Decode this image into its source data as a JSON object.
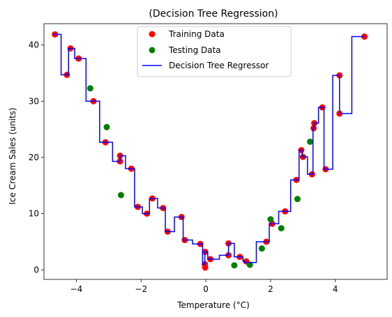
{
  "chart_data": {
    "type": "scatter",
    "title": "(Decision Tree Regression)",
    "xlabel": "Temperature (°C)",
    "ylabel": "Ice Cream Sales (units)",
    "xlim": [
      -5.0,
      5.6
    ],
    "ylim": [
      -1.7,
      43.8
    ],
    "xticks": [
      -4,
      -2,
      0,
      2,
      4
    ],
    "yticks": [
      0,
      10,
      20,
      30,
      40
    ],
    "grid": false,
    "legend_position": "top-center",
    "colors": {
      "training": "#ff0000",
      "testing": "#008000",
      "regressor": "#0000ff"
    },
    "series": [
      {
        "name": "Training Data",
        "kind": "scatter",
        "points": [
          [
            -4.66,
            41.9
          ],
          [
            -4.29,
            34.7
          ],
          [
            -4.18,
            39.4
          ],
          [
            -3.93,
            37.6
          ],
          [
            -3.47,
            30.0
          ],
          [
            -3.1,
            22.7
          ],
          [
            -2.65,
            20.3
          ],
          [
            -2.65,
            19.3
          ],
          [
            -2.3,
            18.0
          ],
          [
            -2.1,
            11.2
          ],
          [
            -1.82,
            10.0
          ],
          [
            -1.65,
            12.7
          ],
          [
            -1.32,
            11.0
          ],
          [
            -1.18,
            6.8
          ],
          [
            -0.75,
            9.4
          ],
          [
            -0.65,
            5.3
          ],
          [
            -0.17,
            4.6
          ],
          [
            -0.03,
            1.0
          ],
          [
            -0.02,
            3.2
          ],
          [
            -0.02,
            0.4
          ],
          [
            0.14,
            1.9
          ],
          [
            0.7,
            4.7
          ],
          [
            0.7,
            2.6
          ],
          [
            1.05,
            2.3
          ],
          [
            1.25,
            1.5
          ],
          [
            1.87,
            5.0
          ],
          [
            2.05,
            8.2
          ],
          [
            2.45,
            10.4
          ],
          [
            2.8,
            16.0
          ],
          [
            2.95,
            21.3
          ],
          [
            3.0,
            20.1
          ],
          [
            3.28,
            17.0
          ],
          [
            3.33,
            25.2
          ],
          [
            3.35,
            26.1
          ],
          [
            3.6,
            28.9
          ],
          [
            3.7,
            17.9
          ],
          [
            4.13,
            34.6
          ],
          [
            4.13,
            27.8
          ],
          [
            4.9,
            41.5
          ]
        ]
      },
      {
        "name": "Testing Data",
        "kind": "scatter",
        "points": [
          [
            -3.57,
            32.3
          ],
          [
            -3.06,
            25.4
          ],
          [
            -2.62,
            13.3
          ],
          [
            0.88,
            0.8
          ],
          [
            1.36,
            0.9
          ],
          [
            1.73,
            3.8
          ],
          [
            2.0,
            9.0
          ],
          [
            2.33,
            7.4
          ],
          [
            2.83,
            12.6
          ],
          [
            3.22,
            22.8
          ]
        ]
      },
      {
        "name": "Decision Tree Regressor",
        "kind": "step",
        "points": [
          [
            -4.7,
            41.9
          ],
          [
            -4.47,
            41.9
          ],
          [
            -4.47,
            34.7
          ],
          [
            -4.24,
            34.7
          ],
          [
            -4.24,
            39.4
          ],
          [
            -4.05,
            39.4
          ],
          [
            -4.05,
            37.6
          ],
          [
            -3.7,
            37.6
          ],
          [
            -3.7,
            30.0
          ],
          [
            -3.28,
            30.0
          ],
          [
            -3.28,
            22.7
          ],
          [
            -2.88,
            22.7
          ],
          [
            -2.88,
            19.3
          ],
          [
            -2.65,
            19.3
          ],
          [
            -2.65,
            20.3
          ],
          [
            -2.48,
            20.3
          ],
          [
            -2.48,
            18.0
          ],
          [
            -2.2,
            18.0
          ],
          [
            -2.2,
            11.2
          ],
          [
            -1.96,
            11.2
          ],
          [
            -1.96,
            10.0
          ],
          [
            -1.74,
            10.0
          ],
          [
            -1.74,
            12.7
          ],
          [
            -1.49,
            12.7
          ],
          [
            -1.49,
            11.0
          ],
          [
            -1.25,
            11.0
          ],
          [
            -1.25,
            6.8
          ],
          [
            -0.97,
            6.8
          ],
          [
            -0.97,
            9.4
          ],
          [
            -0.7,
            9.4
          ],
          [
            -0.7,
            5.3
          ],
          [
            -0.41,
            5.3
          ],
          [
            -0.41,
            4.6
          ],
          [
            -0.1,
            4.6
          ],
          [
            -0.1,
            1.0
          ],
          [
            -0.03,
            1.0
          ],
          [
            -0.03,
            3.2
          ],
          [
            0.06,
            3.2
          ],
          [
            0.06,
            1.9
          ],
          [
            0.42,
            1.9
          ],
          [
            0.42,
            2.6
          ],
          [
            0.7,
            2.6
          ],
          [
            0.7,
            4.7
          ],
          [
            0.88,
            4.7
          ],
          [
            0.88,
            2.3
          ],
          [
            1.15,
            2.3
          ],
          [
            1.15,
            1.5
          ],
          [
            1.2,
            1.5
          ],
          [
            1.2,
            1.3
          ],
          [
            1.56,
            1.3
          ],
          [
            1.56,
            5.0
          ],
          [
            1.96,
            5.0
          ],
          [
            1.96,
            8.2
          ],
          [
            2.25,
            8.2
          ],
          [
            2.25,
            10.4
          ],
          [
            2.62,
            10.4
          ],
          [
            2.62,
            16.0
          ],
          [
            2.88,
            16.0
          ],
          [
            2.88,
            21.3
          ],
          [
            2.98,
            21.3
          ],
          [
            2.98,
            20.1
          ],
          [
            3.14,
            20.1
          ],
          [
            3.14,
            17.0
          ],
          [
            3.31,
            17.0
          ],
          [
            3.31,
            25.2
          ],
          [
            3.34,
            25.2
          ],
          [
            3.34,
            26.1
          ],
          [
            3.48,
            26.1
          ],
          [
            3.48,
            28.9
          ],
          [
            3.65,
            28.9
          ],
          [
            3.65,
            17.9
          ],
          [
            3.92,
            17.9
          ],
          [
            3.92,
            34.6
          ],
          [
            4.13,
            34.6
          ],
          [
            4.13,
            27.8
          ],
          [
            4.51,
            27.8
          ],
          [
            4.51,
            41.5
          ],
          [
            4.9,
            41.5
          ]
        ]
      }
    ]
  }
}
